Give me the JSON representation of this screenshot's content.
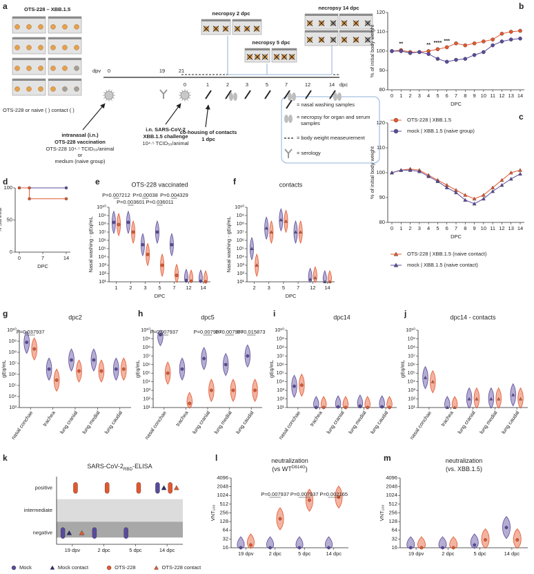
{
  "schematic": {
    "panel": "a",
    "title": "OTS-228 – XBB.1.5",
    "caption": "OTS-228 or naive (   ) contact (   )",
    "dpv_label": "dpv",
    "dpc_label": "dpc",
    "dpv_days": [
      "0",
      "19",
      "21"
    ],
    "dpc_days": [
      "0",
      "1",
      "2",
      "3",
      "5",
      "7",
      "12",
      "14"
    ],
    "necropsy": [
      "necropsy 2 dpc",
      "necropsy 5 dpc",
      "necropsy 14 dpc"
    ],
    "vaccination": [
      "intranasal (i.n.)",
      "OTS-228 vaccination",
      "OTS-228 10⁴·⁷ TCID₅₀/animal",
      "or",
      "medium (naive group)"
    ],
    "challenge": [
      "i.n. SARS-CoV-2",
      "XBB.1.5 challenge",
      "10⁴·⁵ TCID₅₀/animal"
    ],
    "cohousing": [
      "co-housing of contacts",
      "1 dpc"
    ],
    "key": [
      "= nasal washing samples",
      "= necropsy for organ and serum",
      "samples",
      "= body weight measeurement",
      "= serology"
    ]
  },
  "chart_data": [
    {
      "panel": "b",
      "type": "line",
      "ylabel": "% of initial body weight",
      "xlabel": "DPC",
      "x": [
        0,
        1,
        2,
        3,
        4,
        5,
        6,
        7,
        8,
        9,
        10,
        11,
        12,
        13,
        14
      ],
      "xlim": [
        0,
        14
      ],
      "xticks": [
        0,
        1,
        2,
        3,
        4,
        5,
        6,
        7,
        8,
        9,
        10,
        11,
        12,
        13,
        14
      ],
      "ylim": [
        80,
        120
      ],
      "yticks": [
        80,
        90,
        100,
        110,
        120
      ],
      "series": [
        {
          "name": "OTS-228 | XBB.1.5",
          "color": "#e4572e",
          "marker": "circle",
          "values": [
            100,
            100.5,
            99.5,
            99.5,
            100,
            101,
            102,
            104,
            103,
            104,
            105,
            106,
            109,
            110,
            110.5
          ]
        },
        {
          "name": "mock | XBB.1.5 (naive group)",
          "color": "#5a4a9c",
          "marker": "circle",
          "values": [
            100,
            100,
            99,
            99.5,
            98.5,
            96,
            94.5,
            95.5,
            96,
            98,
            99.5,
            103,
            105,
            106,
            106.5
          ]
        }
      ],
      "annotations": [
        {
          "text": "**",
          "x": 1
        },
        {
          "text": "**",
          "x": 4
        },
        {
          "text": "****",
          "x": 5
        },
        {
          "text": "***",
          "x": 6
        }
      ]
    },
    {
      "panel": "c",
      "type": "line",
      "ylabel": "% of initial body weight",
      "xlabel": "DPC",
      "x": [
        0,
        1,
        2,
        3,
        4,
        5,
        6,
        7,
        8,
        9,
        10,
        11,
        12,
        13,
        14
      ],
      "xlim": [
        0,
        14
      ],
      "xticks": [
        0,
        1,
        2,
        3,
        4,
        5,
        6,
        7,
        8,
        9,
        10,
        11,
        12,
        13,
        14
      ],
      "ylim": [
        80,
        120
      ],
      "yticks": [
        80,
        90,
        100,
        110,
        120
      ],
      "series": [
        {
          "name": "OTS-228 | XBB.1.5 (naive contact)",
          "color": "#e4572e",
          "marker": "triangle",
          "values": [
            100,
            101,
            101.5,
            101,
            99,
            97,
            95,
            93,
            91,
            89.5,
            91,
            94,
            97,
            100,
            101
          ]
        },
        {
          "name": "mock | XBB.1.5 (naive contact)",
          "color": "#5a4a9c",
          "marker": "triangle",
          "values": [
            100,
            101,
            101,
            100.5,
            98.5,
            96.5,
            94,
            92,
            89,
            87.5,
            89.5,
            92.5,
            95,
            97.5,
            99.5
          ]
        }
      ]
    },
    {
      "panel": "d",
      "type": "line",
      "ylabel": "% Survival",
      "xlabel": "DPC",
      "xlim": [
        0,
        14
      ],
      "xticks": [
        0,
        7,
        14
      ],
      "ylim": [
        0,
        100
      ],
      "yticks": [
        0,
        50,
        100
      ],
      "series": [
        {
          "color": "#5a4a9c",
          "marker": "circle",
          "x": [
            0,
            14
          ],
          "values": [
            100,
            100
          ]
        },
        {
          "color": "#e4572e",
          "marker": "circle",
          "x": [
            0,
            3,
            3,
            14
          ],
          "values": [
            100,
            100,
            83,
            83
          ]
        }
      ]
    },
    {
      "panel": "e",
      "type": "violin",
      "title": "OTS-228 vaccinated",
      "ylabel": "Nasal washing - gEq/mL",
      "xlabel": "DPC",
      "categories": [
        "1",
        "2",
        "3",
        "5",
        "7",
        "12",
        "14"
      ],
      "log_y": true,
      "ylim": [
        10,
        10000000000.0
      ],
      "yticks": [
        {
          "value": 10.0,
          "label": "10¹"
        },
        {
          "value": 100.0,
          "label": "10²"
        },
        {
          "value": 1000.0,
          "label": "10³"
        },
        {
          "value": 10000.0,
          "label": "10⁴"
        },
        {
          "value": 100000.0,
          "label": "10⁵"
        },
        {
          "value": 1000000.0,
          "label": "10⁶"
        },
        {
          "value": 10000000.0,
          "label": "10⁷"
        },
        {
          "value": 100000000.0,
          "label": "10⁸"
        },
        {
          "value": 1000000000.0,
          "label": "10⁹"
        },
        {
          "value": 10000000000.0,
          "label": "10¹⁰"
        }
      ],
      "series": [
        {
          "color": "#5a4a9c",
          "marker": "circle",
          "values": [
            150000000.0,
            150000000.0,
            300000.0,
            10000000.0,
            300000.0,
            15,
            12
          ]
        },
        {
          "color": "#e4572e",
          "marker": "circle",
          "values": [
            80000000.0,
            10000000.0,
            20000.0,
            1000.0,
            60,
            12,
            10
          ]
        }
      ],
      "annotations": [
        {
          "text": "P=0.007212",
          "x": "1"
        },
        {
          "text": "P=0.003601",
          "x": "2"
        },
        {
          "text": "P=0.00038",
          "x": "3"
        },
        {
          "text": "P=0.036011",
          "x": "5"
        },
        {
          "text": "P=0.004329",
          "x": "7"
        }
      ]
    },
    {
      "panel": "f",
      "type": "violin",
      "title": "contacts",
      "ylabel": "Nasal washing - gEq/mL",
      "xlabel": "DPC",
      "categories": [
        "2",
        "3",
        "5",
        "7",
        "12",
        "14"
      ],
      "log_y": true,
      "ylim": [
        10,
        10000000000.0
      ],
      "yticks": [
        {
          "value": 10.0,
          "label": "10¹"
        },
        {
          "value": 100.0,
          "label": "10²"
        },
        {
          "value": 1000.0,
          "label": "10³"
        },
        {
          "value": 10000.0,
          "label": "10⁴"
        },
        {
          "value": 100000.0,
          "label": "10⁵"
        },
        {
          "value": 1000000.0,
          "label": "10⁶"
        },
        {
          "value": 10000000.0,
          "label": "10⁷"
        },
        {
          "value": 100000000.0,
          "label": "10⁸"
        },
        {
          "value": 1000000000.0,
          "label": "10⁹"
        },
        {
          "value": 10000000000.0,
          "label": "10¹⁰"
        }
      ],
      "series": [
        {
          "color": "#5a4a9c",
          "marker": "triangle",
          "values": [
            100000.0,
            30000000.0,
            300000000.0,
            10000000.0,
            20,
            10
          ]
        },
        {
          "color": "#e4572e",
          "marker": "triangle",
          "values": [
            1000.0,
            10000000.0,
            200000000.0,
            10000000.0,
            30,
            10
          ]
        }
      ]
    },
    {
      "panel": "g",
      "type": "violin",
      "title": "dpc2",
      "ylabel": "gEq/mL",
      "categories": [
        "nasal conchae",
        "trachea",
        "lung cranial",
        "lung medial",
        "lung caudal"
      ],
      "log_y": true,
      "ylim": [
        1000.0,
        10000000000.0
      ],
      "yticks": [
        {
          "value": 1000.0,
          "label": "10³"
        },
        {
          "value": 10000.0,
          "label": "10⁴"
        },
        {
          "value": 100000.0,
          "label": "10⁵"
        },
        {
          "value": 1000000.0,
          "label": "10⁶"
        },
        {
          "value": 10000000.0,
          "label": "10⁷"
        },
        {
          "value": 100000000.0,
          "label": "10⁸"
        },
        {
          "value": 1000000000.0,
          "label": "10⁹"
        },
        {
          "value": 10000000000.0,
          "label": "10¹⁰"
        }
      ],
      "series": [
        {
          "color": "#5a4a9c",
          "marker": "circle",
          "values": [
            800000000.0,
            3000000.0,
            20000000.0,
            20000000.0,
            3000000.0
          ]
        },
        {
          "color": "#e4572e",
          "marker": "circle",
          "values": [
            200000000.0,
            300000.0,
            2000000.0,
            2000000.0,
            3000000.0
          ]
        }
      ],
      "annotations": [
        {
          "text": "P=0.037937",
          "x": "nasal conchae"
        }
      ]
    },
    {
      "panel": "h",
      "type": "violin",
      "title": "dpc5",
      "ylabel": "gEq/mL",
      "categories": [
        "nasal conchae",
        "trachea",
        "lung cranial",
        "lung medial",
        "lung caudal"
      ],
      "log_y": true,
      "ylim": [
        10,
        10000000000.0
      ],
      "yticks": [
        {
          "value": 10.0,
          "label": "10¹"
        },
        {
          "value": 100.0,
          "label": "10²"
        },
        {
          "value": 1000.0,
          "label": "10³"
        },
        {
          "value": 10000.0,
          "label": "10⁴"
        },
        {
          "value": 100000.0,
          "label": "10⁵"
        },
        {
          "value": 1000000.0,
          "label": "10⁶"
        },
        {
          "value": 10000000.0,
          "label": "10⁷"
        },
        {
          "value": 100000000.0,
          "label": "10⁸"
        },
        {
          "value": 1000000000.0,
          "label": "10⁹"
        },
        {
          "value": 10000000000.0,
          "label": "10¹⁰"
        }
      ],
      "series": [
        {
          "color": "#5a4a9c",
          "marker": "circle",
          "values": [
            3000000000.0,
            300000.0,
            5000000.0,
            1000000.0,
            10000000.0
          ]
        },
        {
          "color": "#e4572e",
          "marker": "circle",
          "values": [
            100000.0,
            30,
            1000.0,
            1000.0,
            1000.0
          ]
        }
      ],
      "annotations": [
        {
          "text": "P=0.007937",
          "x": "nasal conchae"
        },
        {
          "text": "P=0.007937",
          "x": "lung cranial"
        },
        {
          "text": "P=0.007937",
          "x": "lung medial"
        },
        {
          "text": "P=0.015873",
          "x": "lung caudal"
        }
      ]
    },
    {
      "panel": "i",
      "type": "violin",
      "title": "dpc14",
      "ylabel": "gEq/mL",
      "categories": [
        "nasal conchae",
        "trachea",
        "lung cranial",
        "lung medial",
        "lung caudal"
      ],
      "log_y": true,
      "ylim": [
        10,
        10000000000.0
      ],
      "yticks": [
        {
          "value": 10.0,
          "label": "10¹"
        },
        {
          "value": 100.0,
          "label": "10²"
        },
        {
          "value": 1000.0,
          "label": "10³"
        },
        {
          "value": 10000.0,
          "label": "10⁴"
        },
        {
          "value": 100000.0,
          "label": "10⁵"
        },
        {
          "value": 1000000.0,
          "label": "10⁶"
        },
        {
          "value": 10000000.0,
          "label": "10⁷"
        },
        {
          "value": 100000000.0,
          "label": "10⁸"
        },
        {
          "value": 1000000000.0,
          "label": "10⁹"
        },
        {
          "value": 10000000000.0,
          "label": "10¹⁰"
        }
      ],
      "series": [
        {
          "color": "#5a4a9c",
          "marker": "circle",
          "values": [
            3000.0,
            10,
            12,
            15,
            12
          ]
        },
        {
          "color": "#e4572e",
          "marker": "circle",
          "values": [
            4000.0,
            10,
            10,
            10,
            10
          ]
        }
      ]
    },
    {
      "panel": "j",
      "type": "violin",
      "title": "dpc14 - contacts",
      "ylabel": "gEq/mL",
      "categories": [
        "nasal conchae",
        "trachea",
        "lung cranial",
        "lung medial",
        "lung caudal"
      ],
      "log_y": true,
      "ylim": [
        10,
        10000000000.0
      ],
      "yticks": [
        {
          "value": 10.0,
          "label": "10¹"
        },
        {
          "value": 100.0,
          "label": "10²"
        },
        {
          "value": 1000.0,
          "label": "10³"
        },
        {
          "value": 10000.0,
          "label": "10⁴"
        },
        {
          "value": 100000.0,
          "label": "10⁵"
        },
        {
          "value": 1000000.0,
          "label": "10⁶"
        },
        {
          "value": 10000000.0,
          "label": "10⁷"
        },
        {
          "value": 100000000.0,
          "label": "10⁸"
        },
        {
          "value": 1000000000.0,
          "label": "10⁹"
        },
        {
          "value": 10000000000.0,
          "label": "10¹⁰"
        }
      ],
      "series": [
        {
          "color": "#5a4a9c",
          "marker": "triangle",
          "values": [
            30000.0,
            10,
            100,
            100,
            300
          ]
        },
        {
          "color": "#e4572e",
          "marker": "triangle",
          "values": [
            10000.0,
            10,
            100,
            100,
            100
          ]
        }
      ]
    },
    {
      "panel": "k",
      "type": "dot",
      "title": [
        "SARS-CoV-2",
        "RBD",
        "-ELISA"
      ],
      "title_script": "sub",
      "categories": [
        "19 dpv",
        "2 dpc",
        "5 dpc",
        "14 dpc"
      ],
      "y_categories": [
        "positive",
        "intermediate",
        "negative"
      ],
      "series": [
        {
          "color": "#5a4a9c",
          "marker": "circle",
          "values": [
            "negative",
            "negative",
            "negative",
            "positive"
          ]
        },
        {
          "color": "#2b2d6e",
          "marker": "triangle",
          "values": [
            "negative",
            null,
            null,
            "positive"
          ]
        },
        {
          "color": "#e4572e",
          "marker": "circle",
          "values": [
            "positive",
            "positive",
            "positive",
            "positive"
          ]
        },
        {
          "color": "#e4572e",
          "marker": "triangle",
          "values": [
            "negative",
            null,
            null,
            "positive"
          ]
        }
      ]
    },
    {
      "panel": "l",
      "type": "violin",
      "title": [
        "neutralization"
      ],
      "subtitle": [
        "(vs WT",
        "D614G",
        ")"
      ],
      "subtitle_script": "super",
      "ylabel": "VNT₁₀₀",
      "categories": [
        "19 dpv",
        "2 dpc",
        "5 dpc",
        "14 dpc"
      ],
      "log_y": true,
      "ylim": [
        16,
        4096
      ],
      "yticks": [
        16,
        32,
        64,
        128,
        256,
        512,
        1024,
        2048,
        4096
      ],
      "series": [
        {
          "color": "#5a4a9c",
          "marker": "circle",
          "values": [
            16,
            16,
            16,
            16
          ]
        },
        {
          "color": "#e4572e",
          "marker": "circle",
          "values": [
            20,
            160,
            700,
            900
          ]
        }
      ],
      "annotations": [
        {
          "text": "P=0.007937",
          "x": "2 dpc"
        },
        {
          "text": "P=0.007937",
          "x": "5 dpc"
        },
        {
          "text": "P=0.002165",
          "x": "14 dpc"
        }
      ]
    },
    {
      "panel": "m",
      "type": "violin",
      "title": [
        "neutralization"
      ],
      "subtitle": [
        "(vs. XBB.1.5)"
      ],
      "ylabel": "VNT₁₀₀",
      "categories": [
        "19 dpv",
        "2 dpc",
        "5 dpc",
        "14 dpc"
      ],
      "log_y": true,
      "ylim": [
        16,
        4096
      ],
      "yticks": [
        16,
        32,
        64,
        128,
        256,
        512,
        1024,
        2048,
        4096
      ],
      "series": [
        {
          "color": "#5a4a9c",
          "marker": "circle",
          "values": [
            16,
            16,
            20,
            80
          ]
        },
        {
          "color": "#e4572e",
          "marker": "circle",
          "values": [
            16,
            16,
            30,
            30
          ]
        }
      ]
    }
  ],
  "legend": {
    "items": [
      {
        "name": "Mock",
        "color": "#5a4a9c",
        "marker": "circle"
      },
      {
        "name": "Mock contact",
        "color": "#2b2d6e",
        "marker": "triangle"
      },
      {
        "name": "OTS-228",
        "color": "#e4572e",
        "marker": "circle"
      },
      {
        "name": "OTS-228 contact",
        "color": "#e4572e",
        "marker": "triangle"
      }
    ]
  }
}
